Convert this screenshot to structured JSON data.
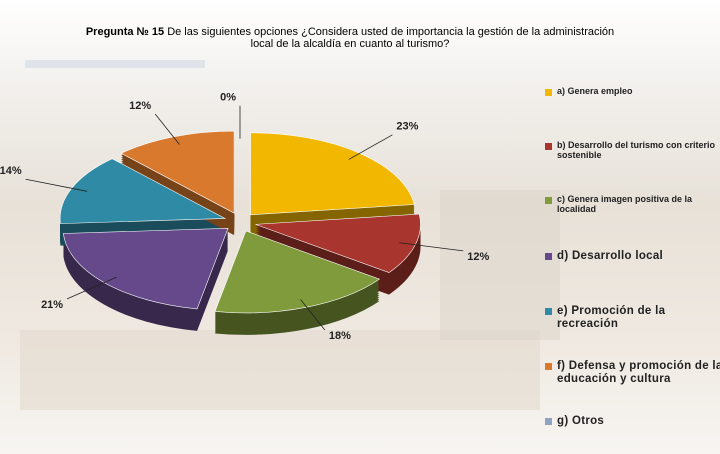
{
  "chart_data": {
    "type": "pie",
    "title": "Pregunta № 15",
    "subtitle": "De las siguientes opciones ¿Considera usted de importancia la gestión de la administración local de la alcaldía en cuanto al turismo?",
    "categories": [
      "a) Genera empleo",
      "b) Desarrollo del turismo con criterio sostenible",
      "c) Genera imagen positiva de la localidad",
      "d) Desarrollo  local",
      "e) Promoción de la recreación",
      "f) Defensa  y promoción de la educación  y cultura",
      "g) Otros"
    ],
    "values": [
      23,
      12,
      18,
      21,
      14,
      12,
      0
    ],
    "value_labels": [
      "23%",
      "12%",
      "18%",
      "21%",
      "14%",
      "12%",
      "0%"
    ],
    "colors": [
      "#f2b700",
      "#a8362e",
      "#809b3b",
      "#66498a",
      "#2f8aa5",
      "#d8792d",
      "#8ea2c2"
    ],
    "legend": "right"
  }
}
